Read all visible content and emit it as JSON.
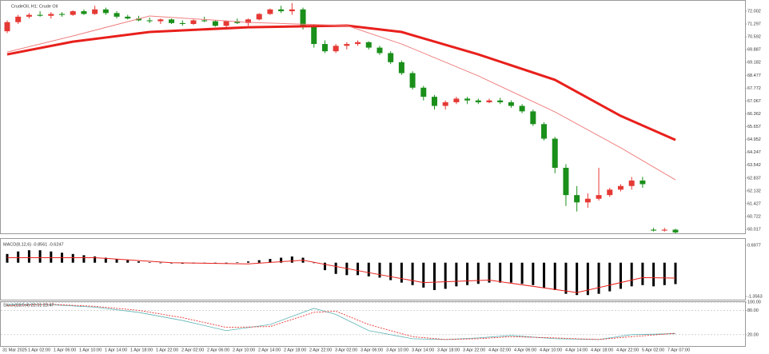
{
  "chart_data": [
    {
      "type": "candlestick",
      "title": "CrudeOil, H1: Crude Oil",
      "up_color": "#e53935",
      "down_color": "#1a8f1a",
      "ylim": [
        59.8,
        72.485
      ],
      "yticks": [
        72.002,
        71.297,
        70.592,
        69.887,
        69.182,
        68.477,
        67.772,
        67.067,
        66.362,
        65.657,
        64.952,
        64.247,
        63.542,
        62.837,
        62.132,
        61.427,
        60.722,
        60.017
      ],
      "x_labels": [
        "31 Mar 2025",
        "1 Apr 02:00",
        "1 Apr 06:00",
        "1 Apr 10:00",
        "1 Apr 14:00",
        "1 Apr 18:00",
        "1 Apr 22:00",
        "2 Apr 02:00",
        "2 Apr 06:00",
        "2 Apr 10:00",
        "2 Apr 14:00",
        "2 Apr 18:00",
        "2 Apr 22:00",
        "3 Apr 02:00",
        "3 Apr 06:00",
        "3 Apr 10:00",
        "3 Apr 14:00",
        "3 Apr 18:00",
        "3 Apr 22:00",
        "4 Apr 02:00",
        "4 Apr 06:00",
        "4 Apr 10:00",
        "4 Apr 14:00",
        "4 Apr 18:00",
        "4 Apr 22:00",
        "5 Apr 02:00",
        "7 Apr 07:00"
      ],
      "ohlc": [
        [
          70.9,
          71.5,
          70.8,
          71.4
        ],
        [
          71.4,
          71.8,
          71.3,
          71.7
        ],
        [
          71.7,
          71.9,
          71.6,
          71.8
        ],
        [
          71.8,
          72.0,
          71.7,
          71.75
        ],
        [
          71.75,
          71.95,
          71.6,
          71.85
        ],
        [
          71.85,
          71.95,
          71.7,
          71.8
        ],
        [
          71.8,
          72.05,
          71.75,
          72.0
        ],
        [
          72.0,
          72.1,
          71.8,
          71.85
        ],
        [
          71.85,
          72.3,
          71.8,
          72.1
        ],
        [
          72.1,
          72.2,
          71.8,
          71.9
        ],
        [
          71.9,
          72.0,
          71.6,
          71.7
        ],
        [
          71.7,
          71.8,
          71.55,
          71.6
        ],
        [
          71.6,
          71.75,
          71.45,
          71.5
        ],
        [
          71.5,
          71.65,
          71.35,
          71.45
        ],
        [
          71.45,
          71.6,
          71.3,
          71.55
        ],
        [
          71.55,
          71.6,
          71.3,
          71.35
        ],
        [
          71.35,
          71.5,
          71.2,
          71.3
        ],
        [
          71.3,
          71.55,
          71.25,
          71.5
        ],
        [
          71.5,
          71.7,
          71.4,
          71.45
        ],
        [
          71.45,
          71.5,
          71.15,
          71.2
        ],
        [
          71.2,
          71.5,
          71.1,
          71.45
        ],
        [
          71.45,
          71.6,
          71.3,
          71.35
        ],
        [
          71.35,
          71.6,
          71.2,
          71.55
        ],
        [
          71.55,
          71.9,
          71.5,
          71.85
        ],
        [
          71.85,
          72.15,
          71.8,
          72.1
        ],
        [
          72.1,
          72.3,
          71.9,
          72.0
        ],
        [
          72.0,
          72.45,
          71.8,
          72.1
        ],
        [
          72.1,
          72.2,
          71.0,
          71.2
        ],
        [
          71.2,
          71.3,
          70.0,
          70.2
        ],
        [
          70.2,
          70.4,
          69.7,
          69.8
        ],
        [
          69.8,
          70.2,
          69.7,
          70.1
        ],
        [
          70.1,
          70.3,
          69.9,
          70.2
        ],
        [
          70.2,
          70.4,
          70.1,
          70.3
        ],
        [
          70.3,
          70.35,
          69.9,
          70.0
        ],
        [
          70.0,
          70.1,
          69.6,
          69.7
        ],
        [
          69.7,
          69.8,
          69.1,
          69.2
        ],
        [
          69.2,
          69.3,
          68.5,
          68.6
        ],
        [
          68.6,
          68.7,
          67.7,
          67.8
        ],
        [
          67.8,
          67.9,
          67.1,
          67.3
        ],
        [
          67.3,
          67.4,
          66.6,
          66.8
        ],
        [
          66.8,
          67.1,
          66.6,
          67.0
        ],
        [
          67.0,
          67.3,
          66.9,
          67.2
        ],
        [
          67.2,
          67.3,
          66.9,
          67.1
        ],
        [
          67.1,
          67.2,
          66.9,
          67.0
        ],
        [
          67.0,
          67.2,
          66.95,
          67.1
        ],
        [
          67.1,
          67.25,
          66.9,
          67.0
        ],
        [
          67.0,
          67.1,
          66.7,
          66.8
        ],
        [
          66.8,
          66.9,
          66.4,
          66.5
        ],
        [
          66.5,
          66.6,
          65.7,
          65.8
        ],
        [
          65.8,
          65.9,
          64.9,
          65.0
        ],
        [
          65.0,
          65.1,
          63.1,
          63.4
        ],
        [
          63.4,
          63.6,
          61.3,
          61.9
        ],
        [
          61.9,
          62.4,
          61.0,
          61.5
        ],
        [
          61.5,
          62.0,
          61.2,
          61.7
        ],
        [
          61.7,
          63.4,
          61.6,
          61.9
        ],
        [
          61.9,
          62.3,
          61.8,
          62.2
        ],
        [
          62.2,
          62.5,
          62.1,
          62.4
        ],
        [
          62.4,
          62.9,
          62.2,
          62.7
        ],
        [
          62.7,
          62.9,
          62.3,
          62.5
        ],
        [
          60.0,
          60.1,
          59.9,
          59.95
        ],
        [
          59.95,
          60.1,
          59.9,
          60.0
        ],
        [
          60.0,
          60.05,
          59.8,
          59.85
        ]
      ],
      "overlays": [
        {
          "color": "#e8201c",
          "width": 3,
          "x": [
            0,
            6,
            13,
            22,
            31,
            36,
            43,
            50,
            56,
            61
          ],
          "values": [
            69.63,
            70.33,
            70.86,
            71.12,
            71.21,
            70.86,
            69.63,
            68.23,
            66.25,
            64.93
          ]
        },
        {
          "color": "#f08080",
          "width": 1,
          "x": [
            0,
            6,
            13,
            22,
            31,
            36,
            43,
            50,
            56,
            61
          ],
          "values": [
            69.76,
            70.64,
            71.74,
            71.39,
            71.21,
            70.2,
            68.45,
            66.47,
            64.5,
            62.74
          ]
        }
      ]
    },
    {
      "type": "macd",
      "title": "MACD(8,12,6) -0.8561 -0.6247",
      "color": "#000000",
      "ylim": [
        -1.517,
        0.922
      ],
      "yticks": [
        0.6977,
        -1.3563
      ],
      "values": [
        0.35,
        0.45,
        0.5,
        0.5,
        0.45,
        0.4,
        0.35,
        0.3,
        0.25,
        0.2,
        0.15,
        0.1,
        0.05,
        0.02,
        -0.02,
        -0.03,
        -0.04,
        -0.03,
        -0.02,
        -0.03,
        -0.02,
        0.02,
        0.05,
        0.1,
        0.15,
        0.2,
        0.25,
        0.2,
        0.0,
        -0.3,
        -0.45,
        -0.5,
        -0.5,
        -0.55,
        -0.6,
        -0.7,
        -0.8,
        -0.9,
        -1.0,
        -1.1,
        -1.05,
        -0.95,
        -0.9,
        -0.85,
        -0.8,
        -0.8,
        -0.8,
        -0.85,
        -0.9,
        -1.0,
        -1.1,
        -1.25,
        -1.3,
        -1.3,
        -1.25,
        -1.15,
        -1.05,
        -0.95,
        -0.9,
        -0.95,
        -0.9,
        -0.86
      ],
      "signal": {
        "color": "#e8201c",
        "x": [
          0,
          8,
          15,
          22,
          27,
          33,
          38,
          44,
          52,
          58,
          61
        ],
        "values": [
          0.2,
          0.2,
          0.0,
          -0.05,
          0.1,
          -0.4,
          -0.8,
          -0.7,
          -1.2,
          -0.6,
          -0.62
        ]
      }
    },
    {
      "type": "stoch",
      "title": "Stoch(13,5,4) 22.51 23.47",
      "ylim": [
        -8,
        100.5
      ],
      "yticks": [
        {
          "value": 100,
          "label": "100.00"
        },
        {
          "value": 80,
          "label": "80.00"
        },
        {
          "value": 20,
          "label": "20.00"
        }
      ],
      "series": [
        {
          "color": "#5fb3b3",
          "dash": false,
          "x": [
            0,
            4,
            8,
            12,
            16,
            20,
            24,
            28,
            30,
            33,
            37,
            40,
            43,
            46,
            50,
            54,
            57,
            61
          ],
          "values": [
            95,
            94,
            88,
            75,
            55,
            30,
            45,
            85,
            70,
            30,
            10,
            8,
            12,
            18,
            10,
            8,
            20,
            22.5
          ]
        },
        {
          "color": "#e8201c",
          "dash": true,
          "x": [
            0,
            4,
            8,
            12,
            16,
            20,
            24,
            28,
            30,
            33,
            37,
            40,
            43,
            46,
            50,
            54,
            57,
            61
          ],
          "values": [
            92,
            95,
            90,
            80,
            62,
            38,
            40,
            75,
            78,
            45,
            15,
            8,
            10,
            15,
            12,
            8,
            15,
            23.5
          ]
        }
      ]
    }
  ]
}
